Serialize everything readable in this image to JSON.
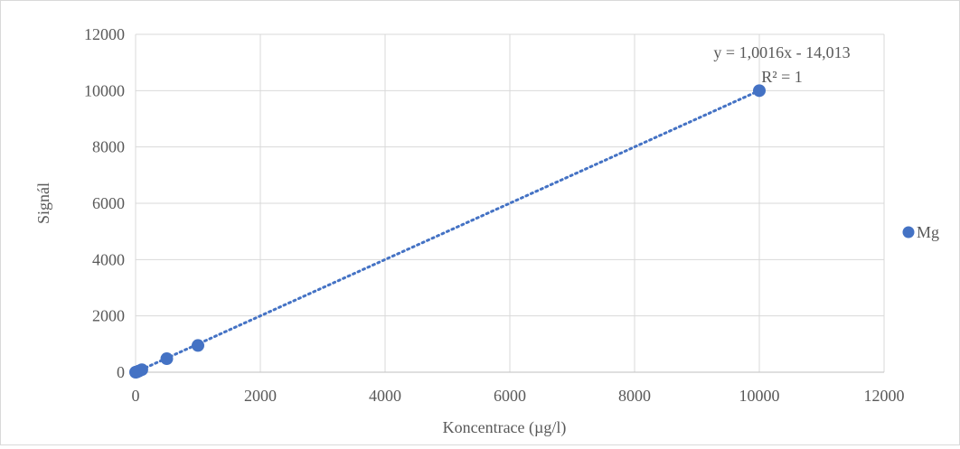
{
  "chart_data": {
    "type": "scatter",
    "title": "",
    "xlabel": "Koncentrace (µg/l)",
    "ylabel": "Signál",
    "xlim": [
      0,
      12000
    ],
    "ylim": [
      0,
      12000
    ],
    "x_ticks": [
      0,
      2000,
      4000,
      6000,
      8000,
      10000,
      12000
    ],
    "y_ticks": [
      0,
      2000,
      4000,
      6000,
      8000,
      10000,
      12000
    ],
    "grid": true,
    "legend_position": "right",
    "series": [
      {
        "name": "Mg",
        "color": "#4472c4",
        "marker": "circle",
        "points": [
          {
            "x": 0,
            "y": 0
          },
          {
            "x": 10,
            "y": 5
          },
          {
            "x": 20,
            "y": 10
          },
          {
            "x": 50,
            "y": 40
          },
          {
            "x": 100,
            "y": 90
          },
          {
            "x": 500,
            "y": 480
          },
          {
            "x": 1000,
            "y": 950
          },
          {
            "x": 10000,
            "y": 10000
          }
        ]
      }
    ],
    "trendline": {
      "type": "linear",
      "style": "dotted",
      "slope": 1.0016,
      "intercept": -14.013,
      "equation": "y = 1,0016x - 14,013",
      "r2_label": "R² = 1"
    }
  }
}
